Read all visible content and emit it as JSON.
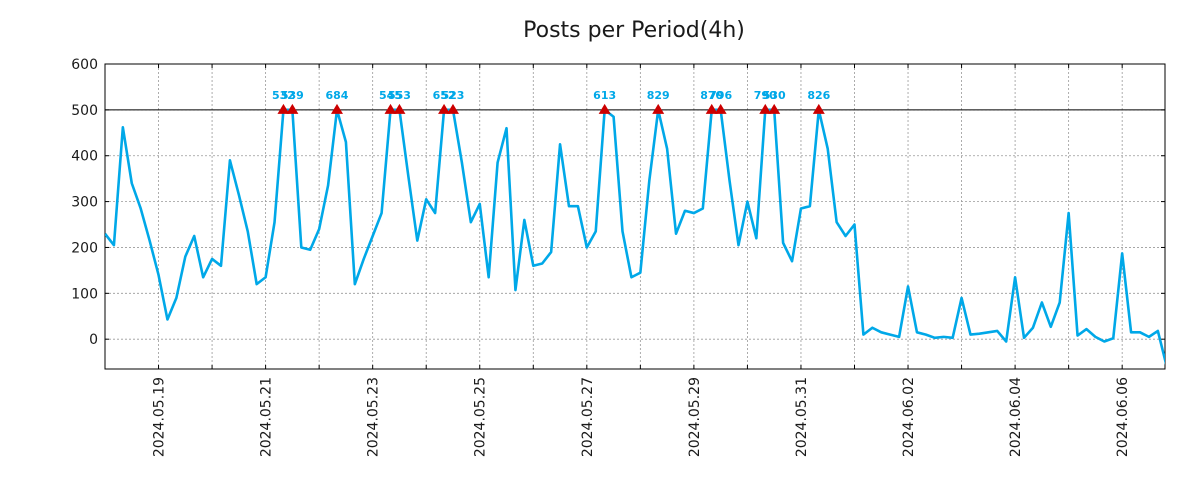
{
  "chart_data": {
    "type": "line",
    "title": "Posts per Period(4h)",
    "xlabel": "",
    "ylabel": "",
    "grid": true,
    "line_color": "#00a8e8",
    "marker_color": "#cc0000",
    "threshold_color": "#000000",
    "x_start": "2024-05-18 00:00",
    "step_hours": 4,
    "xlim_days": [
      0,
      19.8
    ],
    "ylim": [
      -65,
      600
    ],
    "yticks": [
      0,
      100,
      200,
      300,
      400,
      500,
      600
    ],
    "xtick_labels": [
      {
        "day": 1,
        "label": "2024.05.19"
      },
      {
        "day": 3,
        "label": "2024.05.21"
      },
      {
        "day": 5,
        "label": "2024.05.23"
      },
      {
        "day": 7,
        "label": "2024.05.25"
      },
      {
        "day": 9,
        "label": "2024.05.27"
      },
      {
        "day": 11,
        "label": "2024.05.29"
      },
      {
        "day": 13,
        "label": "2024.05.31"
      },
      {
        "day": 15,
        "label": "2024.06.02"
      },
      {
        "day": 17,
        "label": "2024.06.04"
      },
      {
        "day": 19,
        "label": "2024.06.06"
      }
    ],
    "threshold": 500,
    "values": [
      230,
      205,
      462,
      340,
      285,
      215,
      140,
      43,
      90,
      180,
      225,
      135,
      175,
      160,
      390,
      315,
      235,
      120,
      135,
      255,
      500,
      500,
      200,
      195,
      240,
      335,
      500,
      430,
      120,
      175,
      225,
      275,
      500,
      500,
      355,
      215,
      305,
      275,
      500,
      500,
      385,
      255,
      295,
      135,
      385,
      460,
      107,
      260,
      160,
      165,
      190,
      425,
      290,
      290,
      200,
      235,
      500,
      485,
      235,
      135,
      145,
      345,
      500,
      415,
      230,
      280,
      275,
      285,
      500,
      500,
      345,
      205,
      300,
      220,
      500,
      500,
      210,
      170,
      285,
      290,
      500,
      415,
      255,
      225,
      250,
      10,
      25,
      15,
      10,
      5,
      115,
      15,
      10,
      3,
      5,
      3,
      90,
      10,
      12,
      15,
      18,
      -5,
      135,
      3,
      25,
      80,
      27,
      80,
      275,
      8,
      22,
      5,
      -5,
      2,
      187,
      15,
      15,
      5,
      18,
      -60
    ],
    "peaks": [
      {
        "index": 20,
        "label": "532"
      },
      {
        "index": 21,
        "label": "539"
      },
      {
        "index": 26,
        "label": "684"
      },
      {
        "index": 32,
        "label": "545"
      },
      {
        "index": 33,
        "label": "553"
      },
      {
        "index": 38,
        "label": "652"
      },
      {
        "index": 39,
        "label": "523"
      },
      {
        "index": 56,
        "label": "613"
      },
      {
        "index": 62,
        "label": "829"
      },
      {
        "index": 68,
        "label": "870"
      },
      {
        "index": 69,
        "label": "796"
      },
      {
        "index": 74,
        "label": "790"
      },
      {
        "index": 75,
        "label": "530"
      },
      {
        "index": 80,
        "label": "826"
      }
    ]
  }
}
